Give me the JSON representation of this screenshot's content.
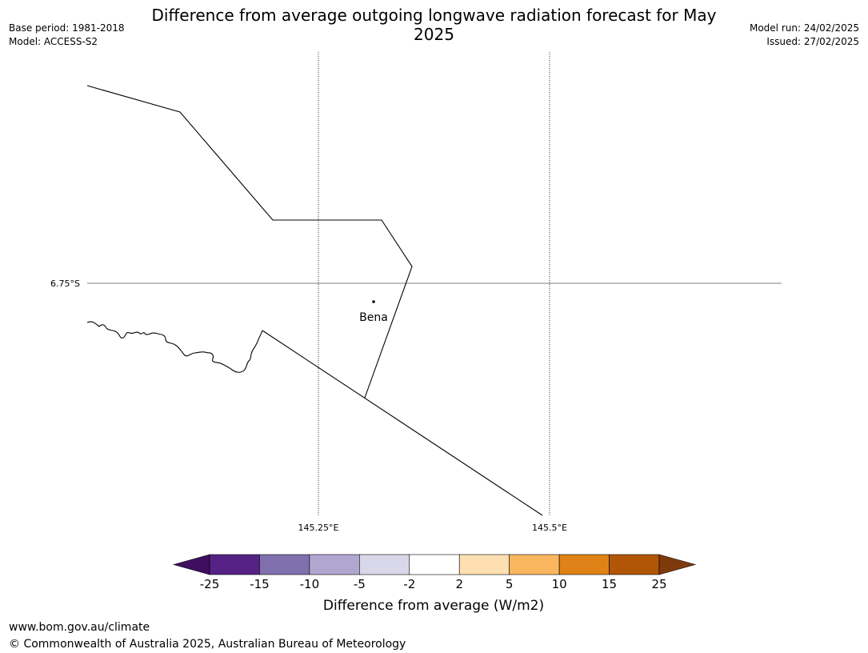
{
  "title": "Difference from average outgoing longwave radiation forecast for May 2025",
  "meta_left": {
    "base_period": "Base period: 1981-2018",
    "model": "Model: ACCESS-S2"
  },
  "meta_right": {
    "model_run": "Model run: 24/02/2025",
    "issued": "Issued: 27/02/2025"
  },
  "map": {
    "lat_labels": [
      "6.75°S"
    ],
    "lon_labels": [
      "145.25°E",
      "145.5°E"
    ],
    "places": [
      {
        "name": "Bena"
      }
    ]
  },
  "colorbar": {
    "title": "Difference from average (W/m2)",
    "ticks": [
      "-25",
      "-15",
      "-10",
      "-5",
      "-2",
      "2",
      "5",
      "10",
      "15",
      "25"
    ],
    "colors": [
      "#3f0e60",
      "#562184",
      "#8170ae",
      "#b0a7d1",
      "#d9d8ea",
      "#ffffff",
      "#fddfb2",
      "#fab65f",
      "#e08217",
      "#b15607",
      "#7f3a0b"
    ]
  },
  "footer": {
    "url": "www.bom.gov.au/climate",
    "copyright": "© Commonwealth of Australia 2025, Australian Bureau of Meteorology"
  }
}
